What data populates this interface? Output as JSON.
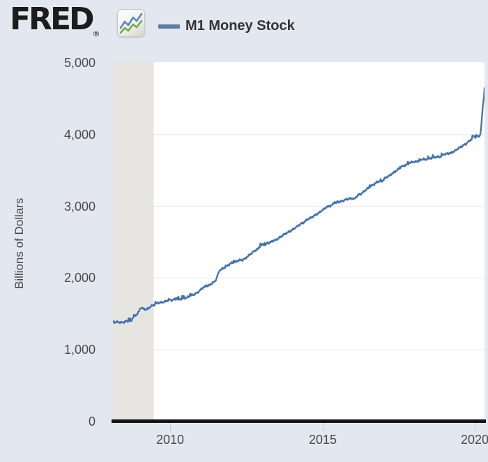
{
  "header": {
    "logo_text": "FRED",
    "registered_mark": "®",
    "legend": {
      "series_label": "M1 Money Stock",
      "swatch_color": "#5b7ca6"
    }
  },
  "colors": {
    "page_background": "#e3e8f0",
    "plot_background": "#ffffff",
    "line": "#4572a7",
    "gridline": "#e5e5e5",
    "recession_band": "#e6e5e2",
    "axis_line": "#141414",
    "tick": "#c2c8d4",
    "label_text": "#4a4a4a",
    "icon_line_blue": "#5b88b5",
    "icon_line_green": "#79a753"
  },
  "chart_data": {
    "type": "line",
    "title": "M1 Money Stock",
    "ylabel": "Billions of Dollars",
    "xlabel": "",
    "ylim": [
      0,
      5000
    ],
    "x_range": [
      2008.12,
      2020.32
    ],
    "grid": true,
    "grid_values": [
      1000,
      2000,
      3000,
      4000
    ],
    "y_ticks": [
      {
        "label": "5,000",
        "value": 5000
      },
      {
        "label": "4,000",
        "value": 4000
      },
      {
        "label": "3,000",
        "value": 3000
      },
      {
        "label": "2,000",
        "value": 2000
      },
      {
        "label": "1,000",
        "value": 1000
      },
      {
        "label": "0",
        "value": 0
      }
    ],
    "x_ticks": [
      {
        "label": "2010",
        "value": 2010
      },
      {
        "label": "2015",
        "value": 2015
      },
      {
        "label": "2020",
        "value": 2020
      }
    ],
    "recession_band": {
      "start": 2008.12,
      "end": 2009.46
    },
    "legend_position": "top",
    "jitter": {
      "amplitude": 15,
      "spike": 34
    },
    "series": [
      {
        "name": "M1 Money Stock",
        "units": "Billions of Dollars",
        "points": [
          [
            2008.12,
            1385
          ],
          [
            2008.2,
            1382
          ],
          [
            2008.29,
            1390
          ],
          [
            2008.37,
            1378
          ],
          [
            2008.46,
            1382
          ],
          [
            2008.54,
            1395
          ],
          [
            2008.62,
            1402
          ],
          [
            2008.71,
            1398
          ],
          [
            2008.79,
            1455
          ],
          [
            2008.87,
            1478
          ],
          [
            2008.96,
            1525
          ],
          [
            2009.04,
            1590
          ],
          [
            2009.12,
            1572
          ],
          [
            2009.21,
            1562
          ],
          [
            2009.29,
            1575
          ],
          [
            2009.37,
            1612
          ],
          [
            2009.46,
            1618
          ],
          [
            2009.54,
            1650
          ],
          [
            2009.62,
            1655
          ],
          [
            2009.71,
            1658
          ],
          [
            2009.79,
            1668
          ],
          [
            2009.87,
            1678
          ],
          [
            2009.96,
            1695
          ],
          [
            2010.04,
            1688
          ],
          [
            2010.12,
            1700
          ],
          [
            2010.21,
            1712
          ],
          [
            2010.29,
            1702
          ],
          [
            2010.37,
            1708
          ],
          [
            2010.46,
            1722
          ],
          [
            2010.54,
            1722
          ],
          [
            2010.62,
            1748
          ],
          [
            2010.71,
            1765
          ],
          [
            2010.79,
            1770
          ],
          [
            2010.87,
            1790
          ],
          [
            2010.96,
            1820
          ],
          [
            2011.04,
            1855
          ],
          [
            2011.12,
            1878
          ],
          [
            2011.21,
            1890
          ],
          [
            2011.29,
            1900
          ],
          [
            2011.37,
            1928
          ],
          [
            2011.46,
            1948
          ],
          [
            2011.54,
            2008
          ],
          [
            2011.62,
            2108
          ],
          [
            2011.71,
            2128
          ],
          [
            2011.79,
            2148
          ],
          [
            2011.87,
            2168
          ],
          [
            2011.96,
            2198
          ],
          [
            2012.04,
            2215
          ],
          [
            2012.12,
            2222
          ],
          [
            2012.21,
            2240
          ],
          [
            2012.29,
            2250
          ],
          [
            2012.37,
            2252
          ],
          [
            2012.46,
            2270
          ],
          [
            2012.54,
            2300
          ],
          [
            2012.62,
            2330
          ],
          [
            2012.71,
            2358
          ],
          [
            2012.79,
            2388
          ],
          [
            2012.87,
            2400
          ],
          [
            2012.96,
            2448
          ],
          [
            2013.04,
            2468
          ],
          [
            2013.12,
            2462
          ],
          [
            2013.21,
            2482
          ],
          [
            2013.29,
            2500
          ],
          [
            2013.37,
            2518
          ],
          [
            2013.46,
            2530
          ],
          [
            2013.54,
            2550
          ],
          [
            2013.62,
            2572
          ],
          [
            2013.71,
            2600
          ],
          [
            2013.79,
            2618
          ],
          [
            2013.87,
            2640
          ],
          [
            2013.96,
            2658
          ],
          [
            2014.04,
            2680
          ],
          [
            2014.12,
            2700
          ],
          [
            2014.21,
            2730
          ],
          [
            2014.29,
            2758
          ],
          [
            2014.37,
            2772
          ],
          [
            2014.46,
            2800
          ],
          [
            2014.54,
            2828
          ],
          [
            2014.62,
            2840
          ],
          [
            2014.71,
            2862
          ],
          [
            2014.79,
            2888
          ],
          [
            2014.87,
            2900
          ],
          [
            2014.96,
            2938
          ],
          [
            2015.04,
            2958
          ],
          [
            2015.12,
            2988
          ],
          [
            2015.21,
            3000
          ],
          [
            2015.29,
            3010
          ],
          [
            2015.37,
            3038
          ],
          [
            2015.46,
            3050
          ],
          [
            2015.54,
            3060
          ],
          [
            2015.62,
            3070
          ],
          [
            2015.71,
            3082
          ],
          [
            2015.79,
            3098
          ],
          [
            2015.87,
            3108
          ],
          [
            2015.96,
            3108
          ],
          [
            2016.04,
            3100
          ],
          [
            2016.12,
            3138
          ],
          [
            2016.21,
            3160
          ],
          [
            2016.29,
            3180
          ],
          [
            2016.37,
            3210
          ],
          [
            2016.46,
            3240
          ],
          [
            2016.54,
            3268
          ],
          [
            2016.62,
            3290
          ],
          [
            2016.71,
            3310
          ],
          [
            2016.79,
            3338
          ],
          [
            2016.87,
            3348
          ],
          [
            2016.96,
            3350
          ],
          [
            2017.04,
            3388
          ],
          [
            2017.12,
            3410
          ],
          [
            2017.21,
            3430
          ],
          [
            2017.29,
            3458
          ],
          [
            2017.37,
            3478
          ],
          [
            2017.46,
            3510
          ],
          [
            2017.54,
            3528
          ],
          [
            2017.62,
            3558
          ],
          [
            2017.71,
            3570
          ],
          [
            2017.79,
            3588
          ],
          [
            2017.87,
            3608
          ],
          [
            2017.96,
            3618
          ],
          [
            2018.04,
            3620
          ],
          [
            2018.12,
            3628
          ],
          [
            2018.21,
            3638
          ],
          [
            2018.29,
            3648
          ],
          [
            2018.37,
            3650
          ],
          [
            2018.46,
            3658
          ],
          [
            2018.54,
            3668
          ],
          [
            2018.62,
            3678
          ],
          [
            2018.71,
            3688
          ],
          [
            2018.79,
            3688
          ],
          [
            2018.87,
            3690
          ],
          [
            2018.96,
            3718
          ],
          [
            2019.04,
            3728
          ],
          [
            2019.12,
            3738
          ],
          [
            2019.21,
            3740
          ],
          [
            2019.29,
            3758
          ],
          [
            2019.37,
            3778
          ],
          [
            2019.46,
            3808
          ],
          [
            2019.54,
            3828
          ],
          [
            2019.62,
            3848
          ],
          [
            2019.71,
            3868
          ],
          [
            2019.79,
            3898
          ],
          [
            2019.87,
            3928
          ],
          [
            2019.96,
            3965
          ],
          [
            2020.04,
            3968
          ],
          [
            2020.12,
            3975
          ],
          [
            2020.18,
            3990
          ],
          [
            2020.22,
            4150
          ],
          [
            2020.26,
            4380
          ],
          [
            2020.3,
            4520
          ],
          [
            2020.32,
            4650
          ]
        ]
      }
    ]
  }
}
